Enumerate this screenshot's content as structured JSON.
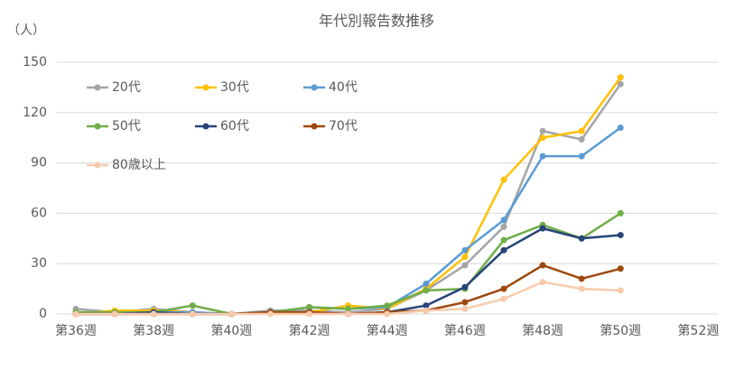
{
  "chart_data": {
    "type": "line",
    "title": "年代別報告数推移",
    "y_label": "（人）",
    "categories": [
      "第36週",
      null,
      "第38週",
      null,
      "第40週",
      null,
      "第42週",
      null,
      "第44週",
      null,
      "第46週",
      null,
      "第48週",
      null,
      "第50週",
      null,
      "第52週"
    ],
    "series": [
      {
        "name": "20代",
        "color": "#a5a5a5",
        "values": [
          3,
          1,
          3,
          1,
          0,
          2,
          2,
          1,
          3,
          14,
          29,
          52,
          109,
          104,
          137,
          null,
          null
        ]
      },
      {
        "name": "30代",
        "color": "#ffc000",
        "values": [
          0,
          2,
          2,
          1,
          0,
          1,
          1,
          5,
          3,
          15,
          34,
          80,
          105,
          109,
          141,
          null,
          null
        ]
      },
      {
        "name": "40代",
        "color": "#5b9bd5",
        "values": [
          1,
          0,
          1,
          1,
          0,
          1,
          4,
          3,
          4,
          18,
          38,
          56,
          94,
          94,
          111,
          null,
          null
        ]
      },
      {
        "name": "50代",
        "color": "#70ad47",
        "values": [
          1,
          1,
          1,
          5,
          0,
          1,
          4,
          3,
          5,
          14,
          15,
          44,
          53,
          45,
          60,
          null,
          null
        ]
      },
      {
        "name": "60代",
        "color": "#264478",
        "values": [
          0,
          0,
          1,
          0,
          0,
          1,
          1,
          0,
          1,
          5,
          16,
          38,
          51,
          45,
          47,
          null,
          null
        ]
      },
      {
        "name": "70代",
        "color": "#9e480e",
        "values": [
          0,
          0,
          0,
          0,
          0,
          1,
          1,
          0,
          1,
          2,
          7,
          15,
          29,
          21,
          27,
          null,
          null
        ]
      },
      {
        "name": "80歳以上",
        "color": "#f8cbad",
        "values": [
          0,
          0,
          0,
          0,
          0,
          0,
          0,
          0,
          0,
          2,
          3,
          9,
          19,
          15,
          14,
          null,
          null
        ]
      }
    ],
    "ylim": [
      0,
      150
    ],
    "yticks": [
      0,
      30,
      60,
      90,
      120,
      150
    ],
    "grid": true
  }
}
